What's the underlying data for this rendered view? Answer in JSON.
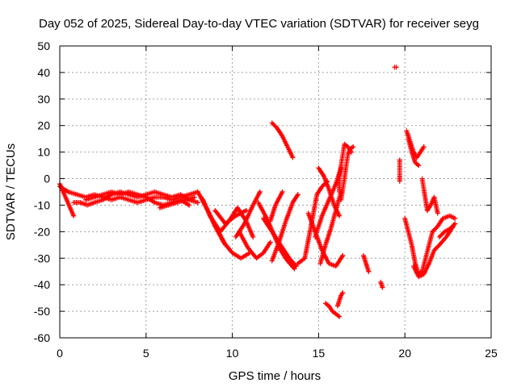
{
  "chart_data": {
    "type": "scatter",
    "title": "Day 052 of 2025, Sidereal Day-to-day VTEC variation (SDTVAR) for receiver seyg",
    "xlabel": "GPS time / hours",
    "ylabel": "SDTVAR / TECUs",
    "xlim": [
      0,
      25
    ],
    "ylim": [
      -60,
      50
    ],
    "xticks": [
      0,
      5,
      10,
      15,
      20,
      25
    ],
    "yticks": [
      -60,
      -50,
      -40,
      -30,
      -20,
      -10,
      0,
      10,
      20,
      30,
      40,
      50
    ],
    "grid": true,
    "marker": "plus",
    "color": "#ff0000",
    "series": [
      {
        "name": "seyg",
        "segments": [
          [
            [
              0.0,
              -2
            ],
            [
              0.2,
              -5
            ],
            [
              0.4,
              -8
            ],
            [
              0.6,
              -11
            ],
            [
              0.8,
              -14
            ]
          ],
          [
            [
              0.0,
              -3
            ],
            [
              0.5,
              -5
            ],
            [
              1.0,
              -6
            ],
            [
              1.5,
              -7
            ],
            [
              2.0,
              -6
            ],
            [
              2.5,
              -7
            ],
            [
              3.0,
              -8
            ],
            [
              3.5,
              -7
            ],
            [
              4.0,
              -8
            ],
            [
              4.5,
              -9
            ],
            [
              5.0,
              -8
            ],
            [
              5.5,
              -7
            ],
            [
              6.0,
              -7
            ],
            [
              6.5,
              -8
            ],
            [
              7.0,
              -7
            ],
            [
              7.5,
              -6
            ],
            [
              8.0,
              -5
            ]
          ],
          [
            [
              0.8,
              -9
            ],
            [
              1.2,
              -9
            ],
            [
              1.6,
              -10
            ],
            [
              2.0,
              -9
            ],
            [
              2.5,
              -8
            ],
            [
              3.0,
              -6
            ],
            [
              3.5,
              -5
            ],
            [
              4.0,
              -6
            ],
            [
              4.5,
              -7
            ],
            [
              5.0,
              -6
            ],
            [
              5.5,
              -5
            ],
            [
              6.0,
              -6
            ],
            [
              6.5,
              -7
            ],
            [
              7.0,
              -6
            ],
            [
              7.5,
              -8
            ],
            [
              8.0,
              -9
            ]
          ],
          [
            [
              1.5,
              -8
            ],
            [
              2.0,
              -7
            ],
            [
              2.5,
              -6
            ],
            [
              3.0,
              -5
            ],
            [
              3.5,
              -6
            ],
            [
              4.0,
              -5
            ],
            [
              4.5,
              -6
            ],
            [
              5.0,
              -7
            ],
            [
              5.5,
              -9
            ],
            [
              6.0,
              -10
            ],
            [
              6.5,
              -9
            ],
            [
              7.0,
              -8
            ],
            [
              7.5,
              -10
            ]
          ],
          [
            [
              5.8,
              -11
            ],
            [
              6.3,
              -10
            ],
            [
              6.8,
              -9
            ],
            [
              7.3,
              -8
            ],
            [
              7.8,
              -7
            ]
          ],
          [
            [
              8.0,
              -5
            ],
            [
              8.5,
              -11
            ],
            [
              9.0,
              -18
            ],
            [
              9.5,
              -24
            ],
            [
              10.0,
              -28
            ],
            [
              10.5,
              -30
            ],
            [
              11.0,
              -28
            ]
          ],
          [
            [
              8.2,
              -7
            ],
            [
              8.8,
              -15
            ],
            [
              9.3,
              -20
            ],
            [
              9.8,
              -16
            ],
            [
              10.3,
              -11
            ],
            [
              10.8,
              -16
            ],
            [
              11.2,
              -22
            ]
          ],
          [
            [
              8.3,
              -8
            ],
            [
              8.7,
              -14
            ],
            [
              9.2,
              -20
            ],
            [
              9.6,
              -25
            ]
          ],
          [
            [
              9.0,
              -12
            ],
            [
              9.6,
              -17
            ],
            [
              10.2,
              -14
            ],
            [
              10.8,
              -12
            ]
          ],
          [
            [
              10.2,
              -22
            ],
            [
              10.7,
              -17
            ],
            [
              11.2,
              -10
            ],
            [
              11.6,
              -5
            ]
          ],
          [
            [
              10.4,
              -20
            ],
            [
              10.9,
              -26
            ],
            [
              11.4,
              -30
            ],
            [
              11.8,
              -28
            ],
            [
              12.2,
              -24
            ]
          ],
          [
            [
              11.5,
              -9
            ],
            [
              12.0,
              -15
            ],
            [
              12.4,
              -21
            ],
            [
              12.8,
              -27
            ],
            [
              13.2,
              -31
            ],
            [
              13.6,
              -34
            ]
          ],
          [
            [
              11.8,
              -15
            ],
            [
              12.3,
              -20
            ],
            [
              12.8,
              -25
            ],
            [
              13.3,
              -30
            ],
            [
              13.7,
              -33
            ]
          ],
          [
            [
              12.2,
              -16
            ],
            [
              12.5,
              -10
            ],
            [
              12.9,
              -5
            ]
          ],
          [
            [
              12.3,
              -31
            ],
            [
              12.7,
              -24
            ],
            [
              13.1,
              -16
            ],
            [
              13.5,
              -9
            ],
            [
              13.8,
              -6
            ]
          ],
          [
            [
              13.8,
              -32
            ],
            [
              14.2,
              -30
            ],
            [
              14.5,
              -20
            ],
            [
              14.9,
              -6
            ],
            [
              15.2,
              -3
            ],
            [
              15.5,
              -1
            ]
          ],
          [
            [
              12.3,
              21
            ],
            [
              12.6,
              19
            ],
            [
              12.9,
              16
            ],
            [
              13.2,
              12
            ],
            [
              13.5,
              8
            ]
          ],
          [
            [
              14.4,
              -13
            ],
            [
              14.8,
              -20
            ],
            [
              15.2,
              -27
            ],
            [
              15.6,
              -32
            ],
            [
              16.0,
              -33
            ],
            [
              16.4,
              -29
            ]
          ],
          [
            [
              14.8,
              -22
            ],
            [
              15.2,
              -14
            ],
            [
              15.6,
              -8
            ],
            [
              16.0,
              -2
            ],
            [
              16.3,
              4
            ]
          ],
          [
            [
              15.1,
              -32
            ],
            [
              15.4,
              -25
            ],
            [
              15.7,
              -19
            ],
            [
              16.0,
              -12
            ],
            [
              16.3,
              -5
            ]
          ],
          [
            [
              15.0,
              4
            ],
            [
              15.3,
              1
            ],
            [
              15.6,
              -4
            ],
            [
              15.9,
              -10
            ],
            [
              16.2,
              -14
            ]
          ],
          [
            [
              16.2,
              -5
            ],
            [
              16.2,
              0
            ],
            [
              16.3,
              5
            ],
            [
              16.4,
              9
            ],
            [
              16.5,
              13
            ],
            [
              16.7,
              12
            ],
            [
              16.9,
              10
            ]
          ],
          [
            [
              16.3,
              -8
            ],
            [
              16.4,
              -4
            ],
            [
              16.5,
              0
            ],
            [
              16.6,
              5
            ],
            [
              16.7,
              9
            ],
            [
              16.8,
              11
            ],
            [
              17.0,
              12
            ]
          ],
          [
            [
              15.4,
              -47
            ],
            [
              15.6,
              -48
            ],
            [
              15.8,
              -50
            ],
            [
              16.0,
              -51
            ],
            [
              16.2,
              -52
            ]
          ],
          [
            [
              16.1,
              -48
            ],
            [
              16.2,
              -46
            ],
            [
              16.3,
              -44
            ],
            [
              16.4,
              -43
            ]
          ],
          [
            [
              17.6,
              -29
            ],
            [
              17.7,
              -31
            ],
            [
              17.8,
              -33
            ],
            [
              17.9,
              -35
            ]
          ],
          [
            [
              18.6,
              -39
            ],
            [
              18.7,
              -41
            ]
          ],
          [
            [
              19.4,
              42
            ],
            [
              19.5,
              42
            ]
          ],
          [
            [
              19.7,
              -1
            ],
            [
              19.7,
              1
            ],
            [
              19.7,
              4
            ],
            [
              19.7,
              7
            ]
          ],
          [
            [
              20.1,
              18
            ],
            [
              20.3,
              14
            ],
            [
              20.5,
              10
            ],
            [
              20.7,
              8
            ],
            [
              20.9,
              10
            ],
            [
              21.1,
              12
            ]
          ],
          [
            [
              20.2,
              15
            ],
            [
              20.4,
              10
            ],
            [
              20.6,
              6
            ],
            [
              20.8,
              5
            ]
          ],
          [
            [
              20.0,
              -15
            ],
            [
              20.2,
              -20
            ],
            [
              20.4,
              -25
            ],
            [
              20.6,
              -32
            ],
            [
              20.8,
              -36
            ],
            [
              21.0,
              -35
            ],
            [
              21.2,
              -30
            ],
            [
              21.4,
              -25
            ],
            [
              21.6,
              -20
            ]
          ],
          [
            [
              20.5,
              -33
            ],
            [
              20.8,
              -37
            ],
            [
              21.1,
              -36
            ],
            [
              21.4,
              -32
            ],
            [
              21.7,
              -27
            ],
            [
              22.0,
              -25
            ],
            [
              22.4,
              -22
            ],
            [
              22.8,
              -18
            ]
          ],
          [
            [
              21.0,
              0
            ],
            [
              21.1,
              -4
            ],
            [
              21.2,
              -8
            ],
            [
              21.3,
              -12
            ]
          ],
          [
            [
              21.3,
              -12
            ],
            [
              21.5,
              -10
            ],
            [
              21.7,
              -7
            ],
            [
              21.9,
              -13
            ]
          ],
          [
            [
              21.6,
              -20
            ],
            [
              21.9,
              -18
            ],
            [
              22.2,
              -15
            ],
            [
              22.6,
              -14
            ],
            [
              22.9,
              -15
            ]
          ],
          [
            [
              22.0,
              -22
            ],
            [
              22.3,
              -20
            ],
            [
              22.6,
              -19
            ],
            [
              22.9,
              -17
            ]
          ]
        ]
      }
    ]
  }
}
